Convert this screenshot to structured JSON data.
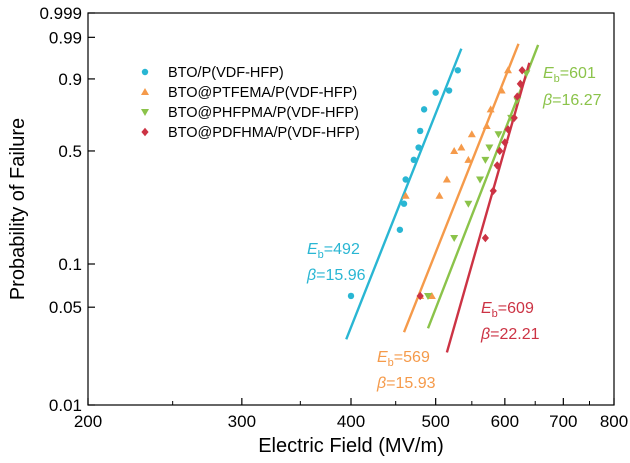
{
  "chart_data": {
    "type": "scatter",
    "title": "",
    "xlabel": "Electric Field (MV/m)",
    "ylabel": "Probability of Failure",
    "x_scale": "log",
    "y_scale": "weibull",
    "xlim": [
      200,
      800
    ],
    "ylim": [
      0.01,
      0.999
    ],
    "x_ticks": [
      200,
      300,
      400,
      500,
      600,
      700,
      800
    ],
    "x_tick_labels": [
      "200",
      "300",
      "400",
      "500",
      "600",
      "700",
      "800"
    ],
    "y_ticks": [
      0.01,
      0.05,
      0.1,
      0.5,
      0.9,
      0.99,
      0.999
    ],
    "y_tick_labels": [
      "0.01",
      "0.05",
      "0.1",
      "0.5",
      "0.9",
      "0.99",
      "0.999"
    ],
    "grid": false,
    "legend_position": "top-left",
    "series": [
      {
        "name": "BTO/P(VDF-HFP)",
        "color": "#29b6d3",
        "marker": "circle",
        "eb": 492,
        "beta": 15.96,
        "annotation": {
          "eb_text": "=492",
          "beta_text": "=15.96"
        },
        "line_range": [
          395,
          535
        ],
        "points": [
          [
            400,
            0.06
          ],
          [
            455,
            0.17
          ],
          [
            460,
            0.25
          ],
          [
            462,
            0.35
          ],
          [
            472,
            0.45
          ],
          [
            478,
            0.52
          ],
          [
            480,
            0.62
          ],
          [
            485,
            0.75
          ],
          [
            500,
            0.84
          ],
          [
            518,
            0.85
          ],
          [
            530,
            0.93
          ]
        ]
      },
      {
        "name": "BTO@PTFEMA/P(VDF-HFP)",
        "color": "#f59a4a",
        "marker": "triangle-up",
        "eb": 569,
        "beta": 15.93,
        "annotation": {
          "eb_text": "=569",
          "beta_text": "=15.93"
        },
        "line_range": [
          460,
          622
        ],
        "points": [
          [
            462,
            0.28
          ],
          [
            480,
            0.06
          ],
          [
            495,
            0.06
          ],
          [
            505,
            0.28
          ],
          [
            515,
            0.35
          ],
          [
            525,
            0.5
          ],
          [
            535,
            0.52
          ],
          [
            545,
            0.45
          ],
          [
            550,
            0.6
          ],
          [
            572,
            0.65
          ],
          [
            578,
            0.75
          ],
          [
            595,
            0.85
          ],
          [
            605,
            0.93
          ]
        ]
      },
      {
        "name": "BTO@PHFPMA/P(VDF-HFP)",
        "color": "#8bc34a",
        "marker": "triangle-down",
        "eb": 601,
        "beta": 16.27,
        "annotation": {
          "eb_text": "=601",
          "beta_text": "=16.27"
        },
        "line_range": [
          490,
          655
        ],
        "points": [
          [
            490,
            0.06
          ],
          [
            525,
            0.15
          ],
          [
            545,
            0.25
          ],
          [
            562,
            0.35
          ],
          [
            570,
            0.45
          ],
          [
            576,
            0.52
          ],
          [
            590,
            0.6
          ],
          [
            610,
            0.7
          ],
          [
            620,
            0.8
          ],
          [
            635,
            0.92
          ]
        ]
      },
      {
        "name": "BTO@PDFHMA/P(VDF-HFP)",
        "color": "#cc3344",
        "marker": "diamond",
        "eb": 609,
        "beta": 22.21,
        "annotation": {
          "eb_text": "=609",
          "beta_text": "=22.21"
        },
        "line_range": [
          515,
          640
        ],
        "points": [
          [
            480,
            0.06
          ],
          [
            570,
            0.15
          ],
          [
            582,
            0.3
          ],
          [
            588,
            0.42
          ],
          [
            592,
            0.5
          ],
          [
            600,
            0.55
          ],
          [
            605,
            0.63
          ],
          [
            615,
            0.7
          ],
          [
            620,
            0.82
          ],
          [
            625,
            0.88
          ],
          [
            628,
            0.93
          ]
        ]
      }
    ]
  }
}
